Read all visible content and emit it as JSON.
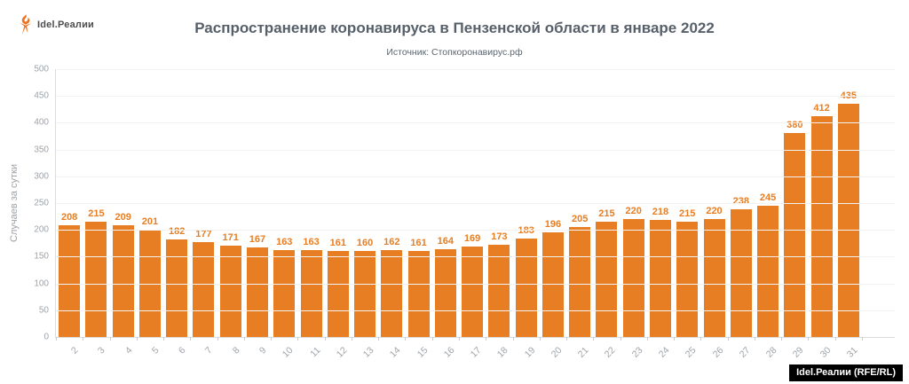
{
  "logo": {
    "icon": "torch-icon",
    "text": "Idel.Реалии"
  },
  "header": {
    "title": "Распространение коронавируса в Пензенской области в январе 2022",
    "subtitle": "Источник: Стопкоронавирус.рф"
  },
  "chart_data": {
    "type": "bar",
    "title": "Распространение коронавируса в Пензенской области в январе 2022",
    "subtitle": "Источник: Стопкоронавирус.рф",
    "xlabel": "",
    "ylabel": "Случаев за сутки",
    "ylim": [
      0,
      500
    ],
    "ytick_step": 50,
    "grid": true,
    "legend": "none",
    "categories": [
      "2",
      "3",
      "4",
      "5",
      "6",
      "7",
      "8",
      "9",
      "10",
      "11",
      "12",
      "13",
      "14",
      "15",
      "16",
      "17",
      "18",
      "19",
      "20",
      "21",
      "22",
      "23",
      "24",
      "25",
      "26",
      "27",
      "28",
      "29",
      "30",
      "31"
    ],
    "values": [
      208,
      215,
      209,
      201,
      182,
      177,
      171,
      167,
      163,
      163,
      161,
      160,
      162,
      161,
      164,
      169,
      173,
      183,
      196,
      205,
      215,
      220,
      218,
      215,
      220,
      238,
      245,
      380,
      412,
      435
    ]
  },
  "colors": {
    "bar": "#e87e23",
    "value_label": "#e87e23",
    "title": "#57606a",
    "axis_label": "#9ea3a8",
    "gridline": "#f2f2f2",
    "credit_bg": "#000000",
    "credit_text": "#ffffff"
  },
  "footer": {
    "credit": "Idel.Реалии (RFE/RL)"
  }
}
